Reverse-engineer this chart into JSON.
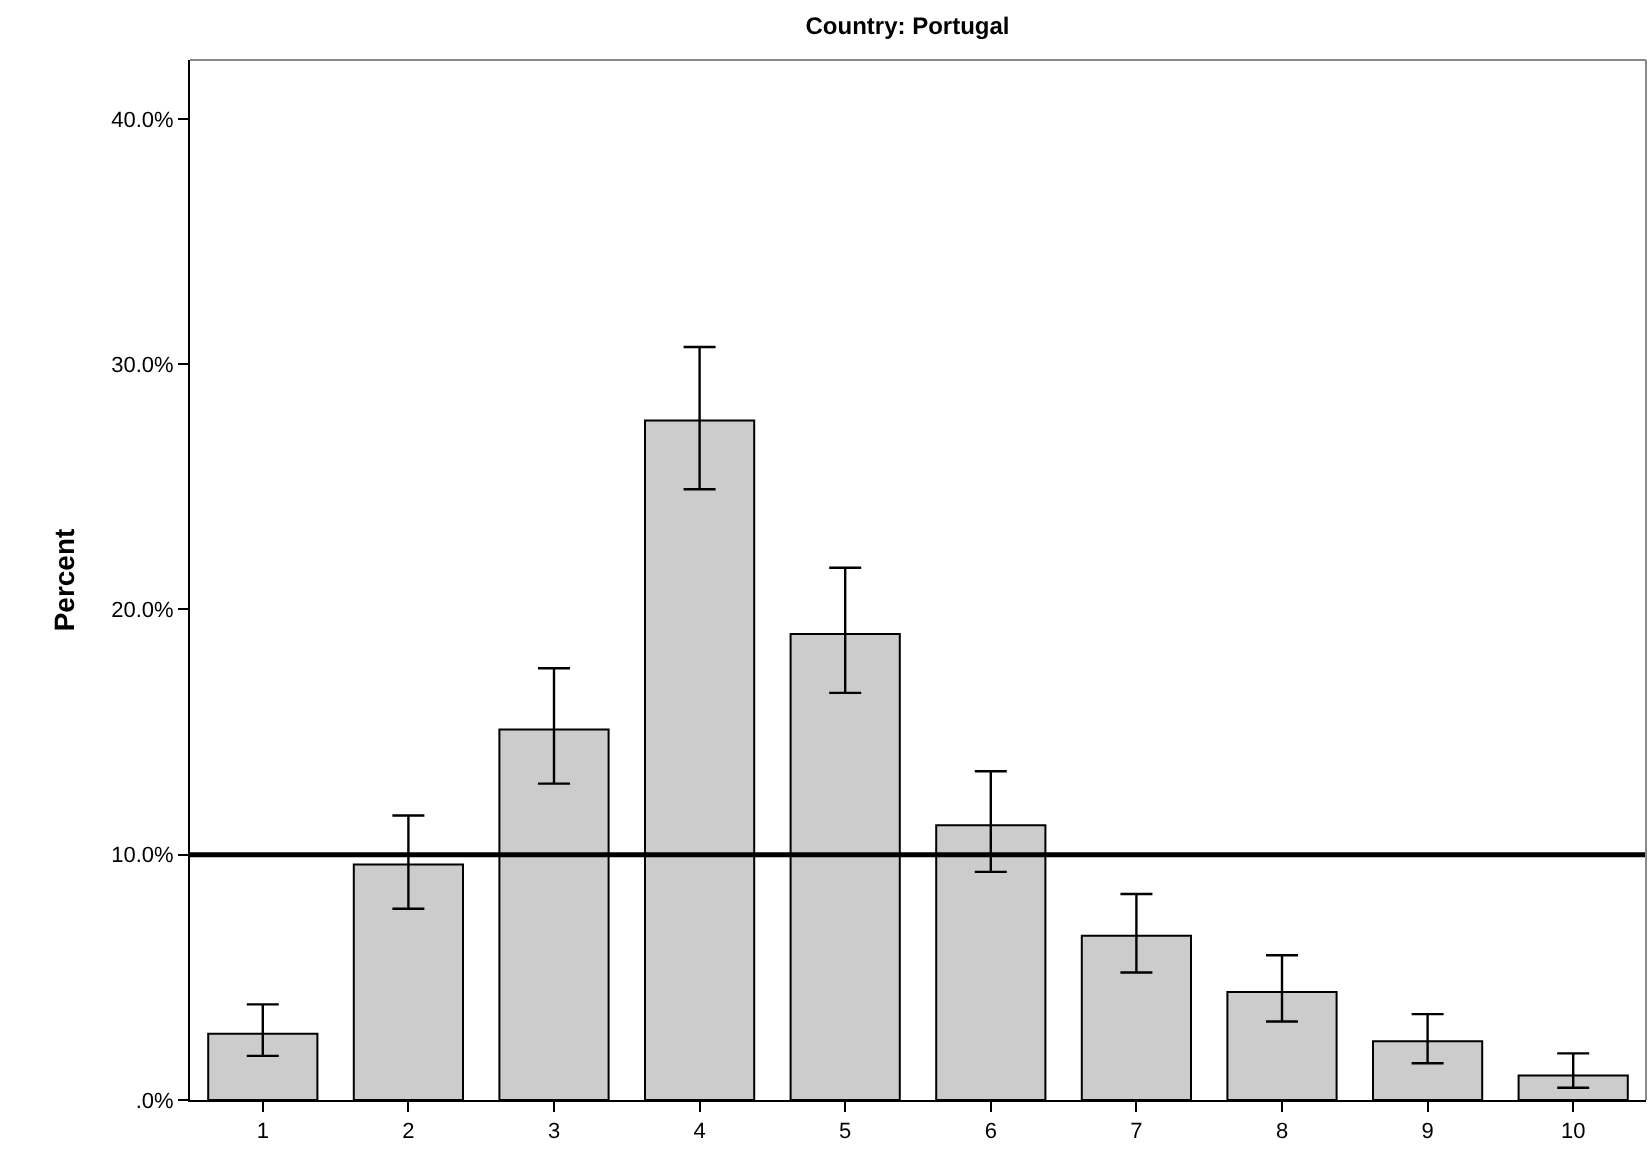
{
  "chart_data": {
    "type": "bar",
    "title": "Country: Portugal",
    "ylabel": "Percent",
    "categories": [
      "1",
      "2",
      "3",
      "4",
      "5",
      "6",
      "7",
      "8",
      "9",
      "10"
    ],
    "values": [
      2.7,
      9.6,
      15.1,
      27.7,
      19.0,
      11.2,
      6.7,
      4.4,
      2.4,
      1.0
    ],
    "errors": [
      [
        1.8,
        3.9
      ],
      [
        7.8,
        11.6
      ],
      [
        12.9,
        17.6
      ],
      [
        24.9,
        30.7
      ],
      [
        16.6,
        21.7
      ],
      [
        9.3,
        13.4
      ],
      [
        5.2,
        8.4
      ],
      [
        3.2,
        5.9
      ],
      [
        1.5,
        3.5
      ],
      [
        0.5,
        1.9
      ]
    ],
    "color": "#cccccc",
    "ylim": [
      0,
      42.4
    ],
    "yticks": [
      {
        "value": 0,
        "label": ".0%"
      },
      {
        "value": 10,
        "label": "10.0%"
      },
      {
        "value": 20,
        "label": "20.0%"
      },
      {
        "value": 30,
        "label": "30.0%"
      },
      {
        "value": 40,
        "label": "40.0%"
      }
    ],
    "ref_lines": [
      {
        "axis": "y",
        "value": 10,
        "color": "#000000"
      }
    ],
    "grid": false
  }
}
